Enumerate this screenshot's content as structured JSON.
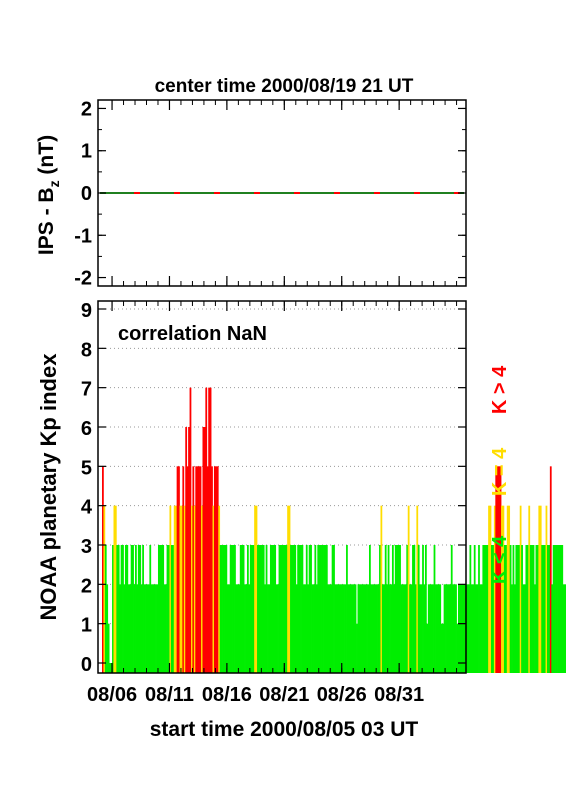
{
  "colors": {
    "low": "#00ee00",
    "mid": "#ffdd00",
    "high": "#ff0000",
    "bz_line_a": "#208020",
    "bz_line_b": "#ff0000"
  },
  "chart_data": [
    {
      "type": "line",
      "title": "center time 2000/08/19 21 UT",
      "ylabel": "IPS - B",
      "ylabel_sub": "z",
      "ylabel_unit": " (nT)",
      "ylim": [
        -2.2,
        2.2
      ],
      "yticks": [
        "2",
        "1",
        "0",
        "-1",
        "-2"
      ],
      "ytick_values": [
        2,
        1,
        0,
        -1,
        -2
      ],
      "series": [
        {
          "x": [
            0,
            31
          ],
          "y": [
            0,
            0
          ]
        }
      ]
    },
    {
      "type": "bar",
      "annotation": "correlation NaN",
      "ylabel": "NOAA planetary Kp index",
      "xlabel": "start time 2000/08/05 03 UT",
      "ylim": [
        0,
        9
      ],
      "yticks": [
        "0",
        "1",
        "2",
        "3",
        "4",
        "5",
        "6",
        "7",
        "8",
        "9"
      ],
      "xlim": [
        0,
        31
      ],
      "xtick_labels": [
        "08/06",
        "08/11",
        "08/16",
        "08/21",
        "08/26",
        "08/31"
      ],
      "xtick_positions": [
        0.875,
        5.875,
        10.875,
        15.875,
        20.875,
        25.875
      ],
      "grid": "horizontal dotted",
      "legend": [
        {
          "label": "K > 4",
          "color": "#ff0000"
        },
        {
          "label": "K = 4",
          "color": "#ffdd00"
        },
        {
          "label": "K < 4",
          "color": "#00ee00"
        }
      ],
      "bin_width_days": 0.125,
      "values": [
        5,
        4,
        3,
        2,
        1,
        0,
        0,
        3,
        4,
        4,
        3,
        3,
        2,
        3,
        3,
        2,
        3,
        3,
        2,
        2,
        3,
        3,
        2,
        3,
        2,
        3,
        3,
        2,
        3,
        2,
        2,
        2,
        2,
        3,
        2,
        2,
        2,
        2,
        2,
        3,
        3,
        3,
        3,
        2,
        2,
        3,
        3,
        4,
        3,
        3,
        4,
        4,
        5,
        5,
        4,
        4,
        5,
        4,
        6,
        5,
        6,
        7,
        4,
        5,
        4,
        5,
        5,
        5,
        5,
        4,
        6,
        6,
        7,
        5,
        7,
        7,
        5,
        4,
        5,
        5,
        5,
        4,
        3,
        3,
        3,
        3,
        3,
        2,
        2,
        3,
        3,
        3,
        3,
        2,
        2,
        2,
        3,
        3,
        3,
        2,
        2,
        3,
        2,
        3,
        3,
        3,
        4,
        4,
        3,
        3,
        3,
        3,
        3,
        2,
        3,
        2,
        2,
        3,
        3,
        3,
        3,
        2,
        2,
        3,
        3,
        3,
        3,
        3,
        3,
        4,
        4,
        3,
        3,
        3,
        3,
        2,
        3,
        3,
        3,
        3,
        2,
        2,
        3,
        2,
        3,
        3,
        2,
        2,
        3,
        2,
        3,
        3,
        3,
        3,
        3,
        3,
        3,
        2,
        2,
        2,
        3,
        3,
        2,
        2,
        2,
        2,
        2,
        2,
        2,
        2,
        3,
        2,
        2,
        2,
        2,
        2,
        2,
        1,
        2,
        2,
        2,
        2,
        2,
        2,
        2,
        2,
        3,
        2,
        2,
        2,
        2,
        2,
        2,
        3,
        4,
        2,
        2,
        3,
        2,
        3,
        2,
        2,
        3,
        2,
        3,
        3,
        3,
        3,
        2,
        2,
        2,
        2,
        3,
        4,
        2,
        2,
        3,
        3,
        2,
        4,
        3,
        2,
        2,
        3,
        2,
        3,
        1,
        2,
        2,
        2,
        2,
        3,
        2,
        2,
        2,
        2,
        1,
        1,
        2,
        2,
        2,
        2,
        2,
        3,
        2,
        2,
        2,
        1,
        2,
        2,
        2,
        2,
        2,
        2,
        2,
        2,
        3,
        2,
        2,
        3,
        2,
        2,
        3,
        2,
        2,
        3,
        3,
        3,
        3,
        4,
        4,
        3,
        3,
        4,
        5,
        5,
        5,
        5,
        4,
        4,
        3,
        3,
        4,
        4,
        3,
        2,
        3,
        2,
        3,
        3,
        3,
        4,
        3,
        2,
        2,
        3,
        3,
        4,
        3,
        3,
        3,
        2,
        3,
        3,
        4,
        4,
        3,
        3,
        3,
        4,
        3,
        3,
        5,
        2,
        3,
        3,
        3,
        3,
        3,
        3,
        3,
        2,
        2,
        2
      ]
    }
  ]
}
